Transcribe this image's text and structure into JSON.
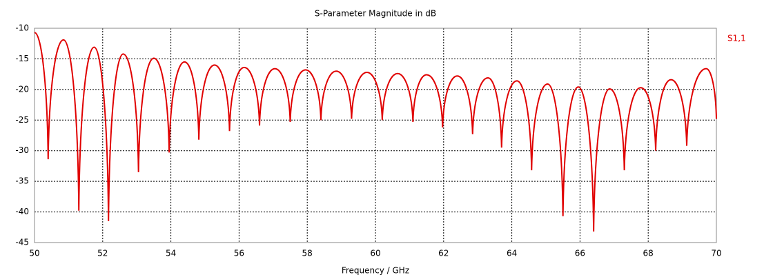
{
  "chart_data": {
    "type": "line",
    "title": "S-Parameter Magnitude in dB",
    "x_label": "Frequency / GHz",
    "x": [
      50.0,
      50.4,
      50.85,
      51.3,
      51.75,
      52.17,
      52.6,
      53.05,
      53.5,
      53.95,
      54.4,
      54.82,
      55.28,
      55.72,
      56.15,
      56.6,
      57.05,
      57.5,
      57.95,
      58.4,
      58.85,
      59.3,
      59.75,
      60.2,
      60.65,
      61.1,
      61.5,
      61.97,
      62.4,
      62.85,
      63.3,
      63.7,
      64.15,
      64.58,
      65.05,
      65.5,
      65.95,
      66.4,
      66.87,
      67.3,
      67.78,
      68.22,
      68.67,
      69.13,
      69.7,
      70.0
    ],
    "series": [
      {
        "name": "S1,1",
        "color": "#e00000",
        "values": [
          -10.7,
          -31.4,
          -11.9,
          -39.8,
          -13.1,
          -41.5,
          -14.2,
          -33.5,
          -14.9,
          -30.3,
          -15.5,
          -28.2,
          -16.0,
          -26.8,
          -16.4,
          -25.9,
          -16.6,
          -25.3,
          -16.8,
          -25.0,
          -17.0,
          -24.8,
          -17.2,
          -25.0,
          -17.4,
          -25.3,
          -17.6,
          -26.2,
          -17.8,
          -27.3,
          -18.1,
          -29.5,
          -18.6,
          -33.2,
          -19.1,
          -40.7,
          -19.6,
          -43.2,
          -19.9,
          -33.2,
          -19.7,
          -30.0,
          -18.4,
          -29.2,
          -16.6,
          -24.8
        ]
      }
    ],
    "xlim": [
      50,
      70
    ],
    "xticks": [
      50,
      52,
      54,
      56,
      58,
      60,
      62,
      64,
      66,
      68,
      70
    ],
    "ylim": [
      -45,
      -10
    ],
    "yticks": [
      -10,
      -15,
      -20,
      -25,
      -30,
      -35,
      -40,
      -45
    ],
    "grid": true,
    "legend": "right"
  }
}
